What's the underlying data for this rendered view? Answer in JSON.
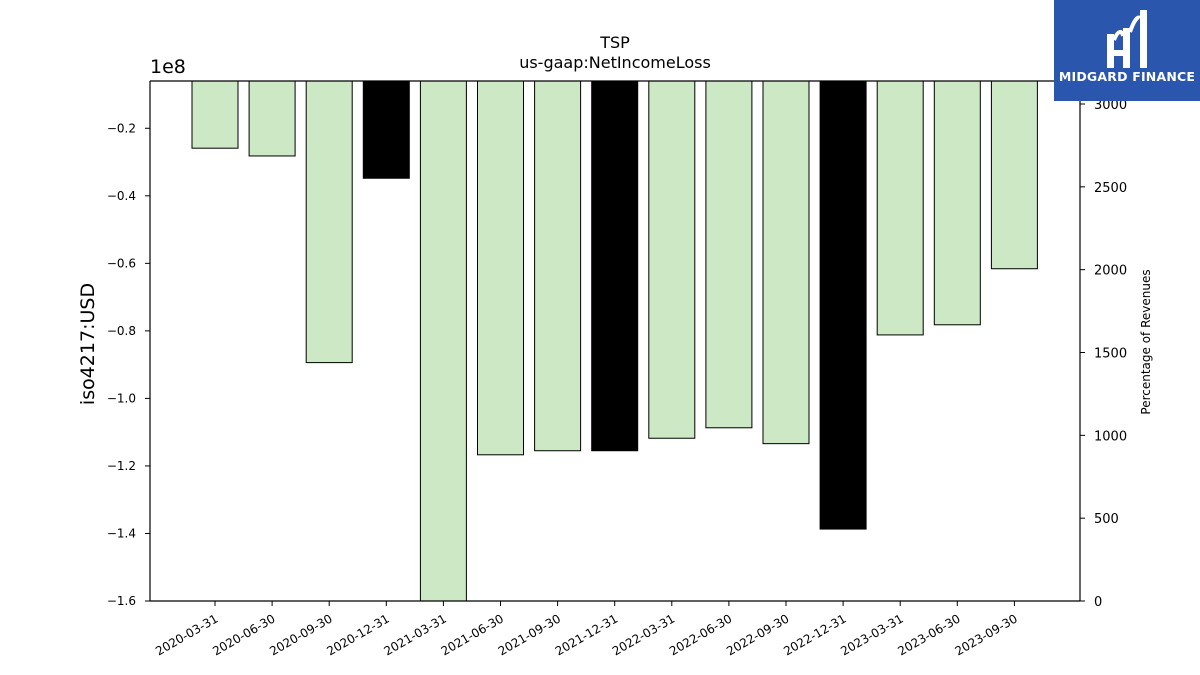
{
  "chart_data": {
    "type": "bar",
    "title": "TSP",
    "subtitle": "us-gaap:NetIncomeLoss",
    "ylabel": "iso4217:USD",
    "y2label": "Percentage of Revenues",
    "y_exponent_label": "1e8",
    "categories": [
      "2020-03-31",
      "2020-06-30",
      "2020-09-30",
      "2020-12-31",
      "2021-03-31",
      "2021-06-30",
      "2021-09-30",
      "2021-12-31",
      "2022-03-31",
      "2022-06-30",
      "2022-09-30",
      "2022-12-31",
      "2023-03-31",
      "2023-06-30",
      "2023-09-30"
    ],
    "values": [
      -0.259,
      -0.282,
      -0.894,
      -0.348,
      -1.61,
      -1.167,
      -1.155,
      -1.155,
      -1.118,
      -1.087,
      -1.134,
      -1.387,
      -0.812,
      -0.782,
      -0.616
    ],
    "value_scale": 100000000,
    "bar_highlight": [
      false,
      false,
      false,
      true,
      false,
      false,
      false,
      true,
      false,
      false,
      false,
      true,
      false,
      false,
      false
    ],
    "ylim": [
      -1.6,
      -0.06
    ],
    "yticks": [
      -0.2,
      -0.4,
      -0.6,
      -0.8,
      -1.0,
      -1.2,
      -1.4,
      -1.6
    ],
    "ytick_labels": [
      "−0.2",
      "−0.4",
      "−0.6",
      "−0.8",
      "−1.0",
      "−1.2",
      "−1.4",
      "−1.6"
    ],
    "y2lim": [
      0,
      3000
    ],
    "y2ticks": [
      0,
      500,
      1000,
      1500,
      2000,
      2500,
      3000
    ],
    "y2tick_labels": [
      "0",
      "500",
      "1000",
      "1500",
      "2000",
      "2500",
      "3000"
    ],
    "colors": {
      "normal": "#cce8c4",
      "highlight": "#000000",
      "edge": "#000000"
    },
    "grid": false,
    "legend": "none"
  },
  "logo": {
    "text": "MIDGARD FINANCE",
    "bg": "#2b56ad"
  }
}
